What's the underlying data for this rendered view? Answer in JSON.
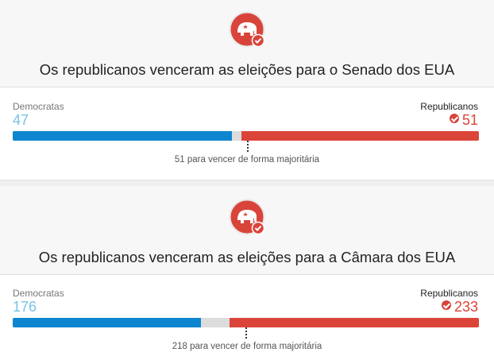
{
  "races": [
    {
      "headline": "Os republicanos venceram as eleições para o Senado dos EUA",
      "dem_label": "Democratas",
      "dem_value": "47",
      "rep_label": "Republicanos",
      "rep_value": "51",
      "total_seats": 100,
      "dem_seats": 47,
      "rep_seats": 51,
      "majority_text": "51 para vencer de forma majoritária",
      "majority_seats": 51
    },
    {
      "headline": "Os republicanos venceram as eleições para a Câmara dos EUA",
      "dem_label": "Democratas",
      "dem_value": "176",
      "rep_label": "Republicanos",
      "rep_value": "233",
      "total_seats": 435,
      "dem_seats": 176,
      "rep_seats": 233,
      "majority_text": "218 para vencer de forma majoritária",
      "majority_seats": 218
    }
  ],
  "colors": {
    "democrat": "#0d86cf",
    "republican": "#db4539",
    "undecided": "#dcdcdc"
  },
  "icons": {
    "party_logo": "republican-elephant-icon",
    "winner": "check-circle-icon"
  }
}
